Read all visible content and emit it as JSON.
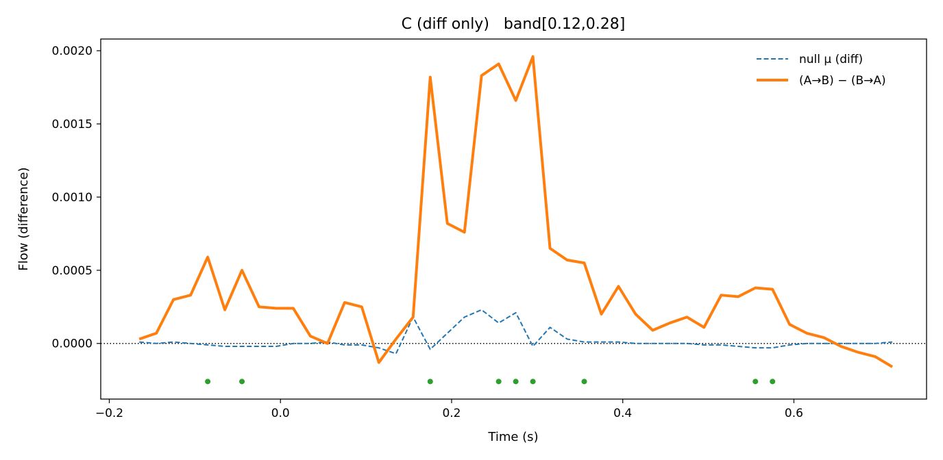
{
  "chart_data": {
    "type": "line",
    "title": "C (diff only)   band[0.12,0.28]",
    "xlabel": "Time (s)",
    "ylabel": "Flow (difference)",
    "xlim": [
      -0.21,
      0.755
    ],
    "ylim": [
      -0.00038,
      0.00208
    ],
    "x_ticks": [
      -0.2,
      0.0,
      0.2,
      0.4,
      0.6
    ],
    "x_tick_labels": [
      "−0.2",
      "0.0",
      "0.2",
      "0.4",
      "0.6"
    ],
    "y_ticks": [
      0.0,
      0.0005,
      0.001,
      0.0015,
      0.002
    ],
    "y_tick_labels": [
      "0.0000",
      "0.0005",
      "0.0010",
      "0.0015",
      "0.0020"
    ],
    "grid": false,
    "legend_position": "top-right",
    "zero_line": {
      "y": 0,
      "style": "dotted",
      "color": "#000000"
    },
    "series": [
      {
        "name": "null μ (diff)",
        "style": "dashed",
        "color": "#1f77b4",
        "x": [
          -0.165,
          -0.145,
          -0.125,
          -0.105,
          -0.085,
          -0.065,
          -0.045,
          -0.025,
          -0.005,
          0.015,
          0.035,
          0.055,
          0.075,
          0.095,
          0.115,
          0.135,
          0.155,
          0.175,
          0.195,
          0.215,
          0.235,
          0.255,
          0.275,
          0.295,
          0.315,
          0.335,
          0.355,
          0.375,
          0.395,
          0.415,
          0.435,
          0.455,
          0.475,
          0.495,
          0.515,
          0.535,
          0.555,
          0.575,
          0.595,
          0.615,
          0.635,
          0.655,
          0.675,
          0.695,
          0.715
        ],
        "y": [
          1e-05,
          0.0,
          1e-05,
          0.0,
          -1e-05,
          -2e-05,
          -2e-05,
          -2e-05,
          -2e-05,
          0.0,
          0.0,
          1e-05,
          -1e-05,
          -1e-05,
          -3e-05,
          -7e-05,
          0.00018,
          -4e-05,
          7e-05,
          0.00018,
          0.00023,
          0.00014,
          0.00021,
          -2e-05,
          0.00011,
          3e-05,
          1e-05,
          1e-05,
          1e-05,
          0.0,
          0.0,
          0.0,
          0.0,
          -1e-05,
          -1e-05,
          -2e-05,
          -3e-05,
          -3e-05,
          -1e-05,
          0.0,
          0.0,
          0.0,
          0.0,
          0.0,
          1e-05
        ]
      },
      {
        "name": "(A→B) − (B→A)",
        "style": "solid",
        "color": "#ff7f0e",
        "x": [
          -0.165,
          -0.145,
          -0.125,
          -0.105,
          -0.085,
          -0.065,
          -0.045,
          -0.025,
          -0.005,
          0.015,
          0.035,
          0.055,
          0.075,
          0.095,
          0.115,
          0.135,
          0.155,
          0.175,
          0.195,
          0.215,
          0.235,
          0.255,
          0.275,
          0.295,
          0.315,
          0.335,
          0.355,
          0.375,
          0.395,
          0.415,
          0.435,
          0.455,
          0.475,
          0.495,
          0.515,
          0.535,
          0.555,
          0.575,
          0.595,
          0.615,
          0.635,
          0.655,
          0.675,
          0.695,
          0.715
        ],
        "y": [
          3e-05,
          7e-05,
          0.0003,
          0.00033,
          0.00059,
          0.00023,
          0.0005,
          0.00025,
          0.00024,
          0.00024,
          5e-05,
          0.0,
          0.00028,
          0.00025,
          -0.00013,
          3e-05,
          0.00018,
          0.00182,
          0.00082,
          0.00076,
          0.00183,
          0.00191,
          0.00166,
          0.00196,
          0.00065,
          0.00057,
          0.00055,
          0.0002,
          0.00039,
          0.0002,
          9e-05,
          0.00014,
          0.00018,
          0.00011,
          0.00033,
          0.00032,
          0.00038,
          0.00037,
          0.00013,
          7e-05,
          4e-05,
          -2e-05,
          -6e-05,
          -9e-05,
          -0.00016
        ]
      }
    ],
    "markers": {
      "color": "#2ca02c",
      "y": -0.00026,
      "x": [
        -0.085,
        -0.045,
        0.175,
        0.255,
        0.275,
        0.295,
        0.355,
        0.555,
        0.575
      ]
    }
  }
}
